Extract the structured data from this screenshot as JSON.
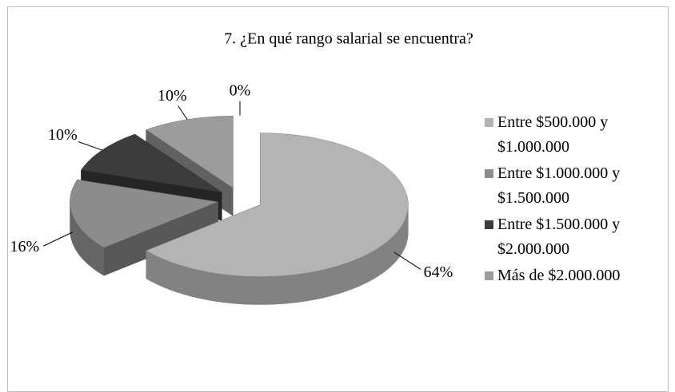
{
  "chart_data": {
    "type": "pie3d",
    "title": "7. ¿En qué rango salarial se encuentra?",
    "categories": [
      "Entre $500.000 y $1.000.000",
      "Entre $1.000.000 y $1.500.000",
      "Entre $1.500.000 y $2.000.000",
      "Más de $2.000.000",
      null
    ],
    "values": [
      64,
      16,
      10,
      10,
      0
    ],
    "value_labels": [
      "64%",
      "16%",
      "10%",
      "10%",
      "0%"
    ],
    "colors": [
      "#b4b4b4",
      "#8c8c8c",
      "#3c3c3c",
      "#9c9c9c",
      "#7a7a7a"
    ],
    "exploded": true,
    "legend": "right"
  }
}
